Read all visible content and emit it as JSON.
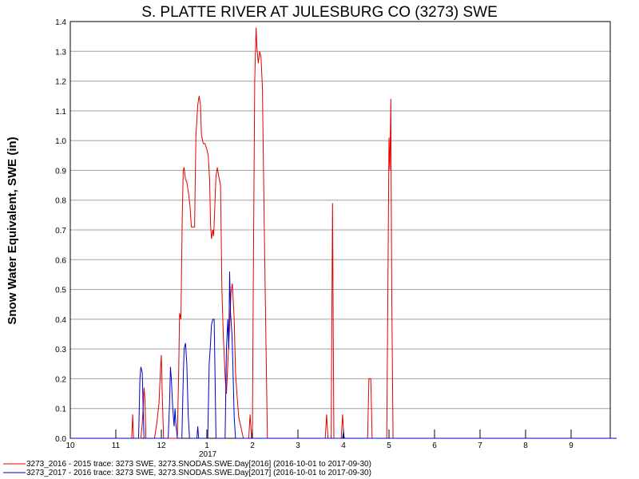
{
  "chart_data": {
    "type": "line",
    "title": "S. PLATTE RIVER AT JULESBURG CO (3273) SWE",
    "xlabel": "",
    "ylabel": "Snow Water Equivalent, SWE (in)",
    "ylim": [
      0,
      1.4
    ],
    "yticks": [
      "0.0",
      "0.1",
      "0.2",
      "0.3",
      "0.4",
      "0.5",
      "0.6",
      "0.7",
      "0.8",
      "0.9",
      "1.0",
      "1.1",
      "1.2",
      "1.3",
      "1.4"
    ],
    "xlim": [
      0,
      12
    ],
    "xticks": [
      {
        "label": "10",
        "x": 0
      },
      {
        "label": "11",
        "x": 1
      },
      {
        "label": "12",
        "x": 2
      },
      {
        "label": "1",
        "x": 3
      },
      {
        "label": "2",
        "x": 4
      },
      {
        "label": "3",
        "x": 5
      },
      {
        "label": "4",
        "x": 6
      },
      {
        "label": "5",
        "x": 7
      },
      {
        "label": "6",
        "x": 8
      },
      {
        "label": "7",
        "x": 9
      },
      {
        "label": "8",
        "x": 10
      },
      {
        "label": "9",
        "x": 11
      }
    ],
    "year_label": {
      "label": "2017",
      "x": 3
    },
    "grid": "horizontal",
    "legend_position": "bottom",
    "series": [
      {
        "name": "3273_2016 - 2015 trace: 3273 SWE, 3273.SNODAS.SWE.Day[2016] (2016-10-01 to 2017-09-30)",
        "color": "#e00000",
        "points": [
          [
            0,
            0
          ],
          [
            1.35,
            0
          ],
          [
            1.37,
            0.08
          ],
          [
            1.39,
            0
          ],
          [
            1.55,
            0
          ],
          [
            1.58,
            0.05
          ],
          [
            1.6,
            0.1
          ],
          [
            1.62,
            0.17
          ],
          [
            1.64,
            0.13
          ],
          [
            1.66,
            0
          ],
          [
            1.85,
            0
          ],
          [
            1.9,
            0.05
          ],
          [
            1.95,
            0.12
          ],
          [
            1.98,
            0.23
          ],
          [
            2.0,
            0.28
          ],
          [
            2.02,
            0.15
          ],
          [
            2.05,
            0
          ],
          [
            2.35,
            0
          ],
          [
            2.38,
            0.22
          ],
          [
            2.4,
            0.42
          ],
          [
            2.43,
            0.4
          ],
          [
            2.46,
            0.75
          ],
          [
            2.48,
            0.9
          ],
          [
            2.5,
            0.91
          ],
          [
            2.53,
            0.87
          ],
          [
            2.56,
            0.86
          ],
          [
            2.6,
            0.82
          ],
          [
            2.63,
            0.78
          ],
          [
            2.66,
            0.71
          ],
          [
            2.7,
            0.71
          ],
          [
            2.73,
            0.71
          ],
          [
            2.76,
            1.02
          ],
          [
            2.8,
            1.12
          ],
          [
            2.83,
            1.15
          ],
          [
            2.86,
            1.12
          ],
          [
            2.88,
            1.02
          ],
          [
            2.92,
            0.99
          ],
          [
            2.96,
            0.99
          ],
          [
            3.0,
            0.97
          ],
          [
            3.03,
            0.95
          ],
          [
            3.06,
            0.87
          ],
          [
            3.08,
            0.72
          ],
          [
            3.1,
            0.67
          ],
          [
            3.13,
            0.7
          ],
          [
            3.15,
            0.68
          ],
          [
            3.2,
            0.88
          ],
          [
            3.23,
            0.91
          ],
          [
            3.26,
            0.88
          ],
          [
            3.3,
            0.85
          ],
          [
            3.33,
            0.5
          ],
          [
            3.36,
            0.35
          ],
          [
            3.4,
            0.21
          ],
          [
            3.43,
            0.15
          ],
          [
            3.46,
            0.25
          ],
          [
            3.5,
            0.38
          ],
          [
            3.53,
            0.49
          ],
          [
            3.56,
            0.52
          ],
          [
            3.6,
            0.4
          ],
          [
            3.63,
            0.22
          ],
          [
            3.66,
            0.15
          ],
          [
            3.7,
            0.07
          ],
          [
            3.73,
            0.05
          ],
          [
            3.76,
            0.03
          ],
          [
            3.8,
            0
          ],
          [
            3.92,
            0
          ],
          [
            3.95,
            0.08
          ],
          [
            3.98,
            0
          ],
          [
            4.0,
            0.02
          ],
          [
            4.02,
            0.52
          ],
          [
            4.05,
            1.2
          ],
          [
            4.08,
            1.38
          ],
          [
            4.1,
            1.31
          ],
          [
            4.13,
            1.26
          ],
          [
            4.16,
            1.3
          ],
          [
            4.19,
            1.28
          ],
          [
            4.22,
            1.18
          ],
          [
            4.26,
            0.72
          ],
          [
            4.3,
            0.3
          ],
          [
            4.33,
            0
          ],
          [
            5.6,
            0
          ],
          [
            5.63,
            0.08
          ],
          [
            5.66,
            0
          ],
          [
            5.73,
            0
          ],
          [
            5.76,
            0.79
          ],
          [
            5.79,
            0
          ],
          [
            5.95,
            0
          ],
          [
            5.98,
            0.08
          ],
          [
            6.01,
            0
          ],
          [
            6.53,
            0
          ],
          [
            6.56,
            0.2
          ],
          [
            6.6,
            0.2
          ],
          [
            6.63,
            0
          ],
          [
            6.95,
            0
          ],
          [
            6.98,
            0.6
          ],
          [
            7.0,
            1.01
          ],
          [
            7.02,
            0.9
          ],
          [
            7.04,
            1.14
          ],
          [
            7.06,
            0.5
          ],
          [
            7.09,
            0
          ],
          [
            12,
            0
          ]
        ]
      },
      {
        "name": "3273_2017 - 2016 trace: 3273 SWE, 3273.SNODAS.SWE.Day[2017] (2016-10-01 to 2017-09-30)",
        "color": "#0000c8",
        "points": [
          [
            0,
            0
          ],
          [
            1.5,
            0
          ],
          [
            1.53,
            0.2
          ],
          [
            1.55,
            0.24
          ],
          [
            1.58,
            0.22
          ],
          [
            1.6,
            0.1
          ],
          [
            1.62,
            0
          ],
          [
            2.15,
            0
          ],
          [
            2.18,
            0.12
          ],
          [
            2.2,
            0.24
          ],
          [
            2.22,
            0.2
          ],
          [
            2.25,
            0.1
          ],
          [
            2.28,
            0.04
          ],
          [
            2.3,
            0.1
          ],
          [
            2.32,
            0.05
          ],
          [
            2.35,
            0
          ],
          [
            2.45,
            0
          ],
          [
            2.48,
            0.2
          ],
          [
            2.5,
            0.3
          ],
          [
            2.53,
            0.32
          ],
          [
            2.56,
            0.25
          ],
          [
            2.59,
            0.08
          ],
          [
            2.62,
            0
          ],
          [
            2.78,
            0
          ],
          [
            2.8,
            0.04
          ],
          [
            2.82,
            0
          ],
          [
            3.02,
            0
          ],
          [
            3.05,
            0.25
          ],
          [
            3.08,
            0.32
          ],
          [
            3.1,
            0.38
          ],
          [
            3.13,
            0.4
          ],
          [
            3.16,
            0.4
          ],
          [
            3.18,
            0.2
          ],
          [
            3.2,
            0
          ],
          [
            3.4,
            0
          ],
          [
            3.43,
            0.3
          ],
          [
            3.46,
            0.4
          ],
          [
            3.48,
            0.3
          ],
          [
            3.5,
            0.56
          ],
          [
            3.52,
            0.42
          ],
          [
            3.55,
            0.35
          ],
          [
            3.57,
            0.25
          ],
          [
            3.6,
            0.07
          ],
          [
            3.63,
            0
          ],
          [
            5.98,
            0
          ],
          [
            6.0,
            0.02
          ],
          [
            6.02,
            0
          ],
          [
            12,
            0
          ]
        ]
      }
    ]
  }
}
